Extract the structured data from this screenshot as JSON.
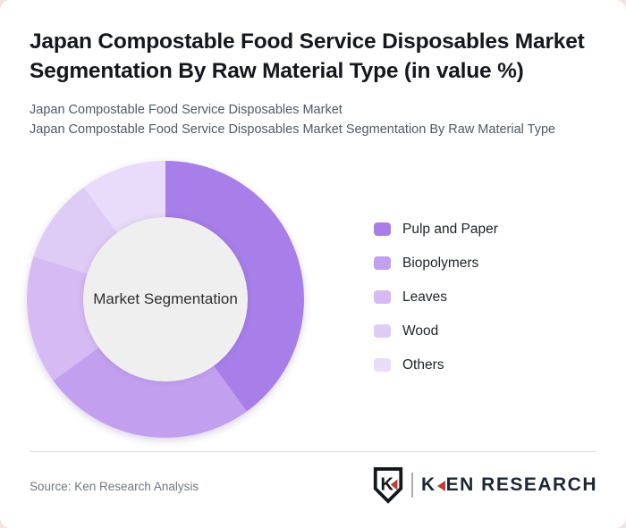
{
  "header": {
    "title": "Japan Compostable Food Service Disposables Market Segmentation By Raw Material Type (in value %)",
    "subtitle_line1": "Japan Compostable Food Service Disposables Market",
    "subtitle_line2": "Japan Compostable Food Service Disposables Market Segmentation By Raw Material Type"
  },
  "chart_data": {
    "type": "pie",
    "variant": "donut",
    "title": "Japan Compostable Food Service Disposables Market Segmentation By Raw Material Type (in value %)",
    "center_label": "Market Segmentation",
    "unit": "value %",
    "legend_position": "right",
    "start_angle_deg": 0,
    "slices": [
      {
        "label": "Pulp and Paper",
        "value": 40,
        "color": "#a87ee8"
      },
      {
        "label": "Biopolymers",
        "value": 25,
        "color": "#c39fef"
      },
      {
        "label": "Leaves",
        "value": 15,
        "color": "#d5baf4"
      },
      {
        "label": "Wood",
        "value": 10,
        "color": "#dfccf6"
      },
      {
        "label": "Others",
        "value": 10,
        "color": "#e9dcfa"
      }
    ],
    "hole_color": "#f0eff0"
  },
  "footer": {
    "source": "Source: Ken Research Analysis",
    "logo": {
      "shield_letter": "K",
      "text_k": "K",
      "text_rest": "EN RESEARCH",
      "accent_color": "#c23a36"
    }
  }
}
